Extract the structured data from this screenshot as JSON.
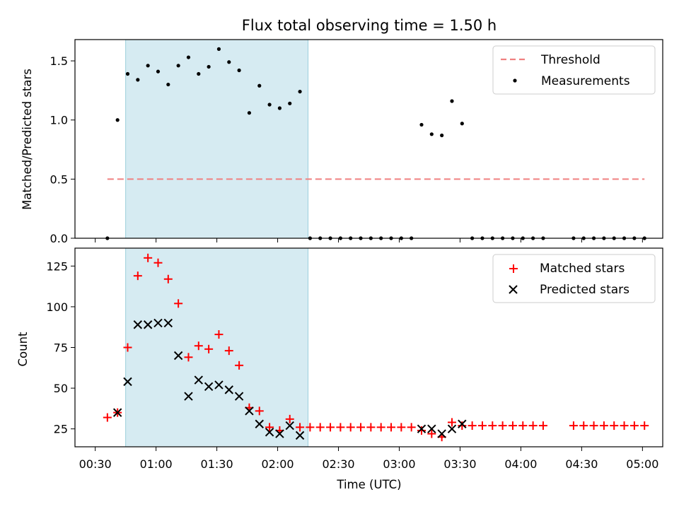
{
  "chart_data": [
    {
      "type": "scatter",
      "title": "Flux total observing time = 1.50 h",
      "xlabel": "",
      "ylabel": "Matched/Predicted stars",
      "xlim": [
        "00:20",
        "05:10"
      ],
      "ylim": [
        0,
        1.68
      ],
      "yticks": [
        "0.0",
        "0.5",
        "1.0",
        "1.5"
      ],
      "highlight_span": [
        "00:45",
        "02:15"
      ],
      "legend": {
        "location": "upper right",
        "entries": [
          "Threshold",
          "Measurements"
        ]
      },
      "threshold": {
        "name": "Threshold",
        "y": 0.5,
        "x": [
          "00:36",
          "05:01"
        ],
        "color": "#f08080",
        "style": "dashed"
      },
      "series": [
        {
          "name": "Measurements",
          "color": "#000000",
          "marker": "dot",
          "x": [
            "00:36",
            "00:41",
            "00:46",
            "00:51",
            "00:56",
            "01:01",
            "01:06",
            "01:11",
            "01:16",
            "01:21",
            "01:26",
            "01:31",
            "01:36",
            "01:41",
            "01:46",
            "01:51",
            "01:56",
            "02:01",
            "02:06",
            "02:11",
            "02:16",
            "02:21",
            "02:26",
            "02:31",
            "02:36",
            "02:41",
            "02:46",
            "02:51",
            "02:56",
            "03:01",
            "03:06",
            "03:11",
            "03:16",
            "03:21",
            "03:26",
            "03:31",
            "03:36",
            "03:41",
            "03:46",
            "03:51",
            "03:56",
            "04:01",
            "04:06",
            "04:11",
            "04:26",
            "04:31",
            "04:36",
            "04:41",
            "04:46",
            "04:51",
            "04:56",
            "05:01"
          ],
          "y": [
            0,
            1.0,
            1.39,
            1.34,
            1.46,
            1.41,
            1.3,
            1.46,
            1.53,
            1.39,
            1.45,
            1.6,
            1.49,
            1.42,
            1.06,
            1.29,
            1.13,
            1.1,
            1.14,
            1.24,
            0,
            0,
            0,
            0,
            0,
            0,
            0,
            0,
            0,
            0,
            0,
            0.96,
            0.88,
            0.87,
            1.16,
            0.97,
            0,
            0,
            0,
            0,
            0,
            0,
            0,
            0,
            0,
            0,
            0,
            0,
            0,
            0,
            0,
            0
          ]
        }
      ]
    },
    {
      "type": "scatter",
      "title": "",
      "xlabel": "Time (UTC)",
      "ylabel": "Count",
      "xlim": [
        "00:20",
        "05:10"
      ],
      "ylim": [
        14,
        136
      ],
      "yticks": [
        "25",
        "50",
        "75",
        "100",
        "125"
      ],
      "xticks": [
        "00:30",
        "01:00",
        "01:30",
        "02:00",
        "02:30",
        "03:00",
        "03:30",
        "04:00",
        "04:30",
        "05:00"
      ],
      "highlight_span": [
        "00:45",
        "02:15"
      ],
      "legend": {
        "location": "upper right",
        "entries": [
          "Matched stars",
          "Predicted stars"
        ]
      },
      "series": [
        {
          "name": "Matched stars",
          "color": "#ff0000",
          "marker": "plus",
          "x": [
            "00:36",
            "00:41",
            "00:46",
            "00:51",
            "00:56",
            "01:01",
            "01:06",
            "01:11",
            "01:16",
            "01:21",
            "01:26",
            "01:31",
            "01:36",
            "01:41",
            "01:46",
            "01:51",
            "01:56",
            "02:01",
            "02:06",
            "02:11",
            "02:16",
            "02:21",
            "02:26",
            "02:31",
            "02:36",
            "02:41",
            "02:46",
            "02:51",
            "02:56",
            "03:01",
            "03:06",
            "03:11",
            "03:16",
            "03:21",
            "03:26",
            "03:31",
            "03:36",
            "03:41",
            "03:46",
            "03:51",
            "03:56",
            "04:01",
            "04:06",
            "04:11",
            "04:26",
            "04:31",
            "04:36",
            "04:41",
            "04:46",
            "04:51",
            "04:56",
            "05:01"
          ],
          "y": [
            32,
            35,
            75,
            119,
            130,
            127,
            117,
            102,
            69,
            76,
            74,
            83,
            73,
            64,
            38,
            36,
            26,
            24,
            31,
            26,
            26,
            26,
            26,
            26,
            26,
            26,
            26,
            26,
            26,
            26,
            26,
            24,
            22,
            20,
            29,
            27,
            27,
            27,
            27,
            27,
            27,
            27,
            27,
            27,
            27,
            27,
            27,
            27,
            27,
            27,
            27,
            27
          ]
        },
        {
          "name": "Predicted stars",
          "color": "#000000",
          "marker": "x",
          "x": [
            "00:41",
            "00:46",
            "00:51",
            "00:56",
            "01:01",
            "01:06",
            "01:11",
            "01:16",
            "01:21",
            "01:26",
            "01:31",
            "01:36",
            "01:41",
            "01:46",
            "01:51",
            "01:56",
            "02:01",
            "02:06",
            "02:11",
            "03:11",
            "03:16",
            "03:21",
            "03:26",
            "03:31"
          ],
          "y": [
            35,
            54,
            89,
            89,
            90,
            90,
            70,
            45,
            55,
            51,
            52,
            49,
            45,
            36,
            28,
            23,
            22,
            27,
            21,
            25,
            25,
            22,
            25,
            28
          ]
        }
      ]
    }
  ]
}
